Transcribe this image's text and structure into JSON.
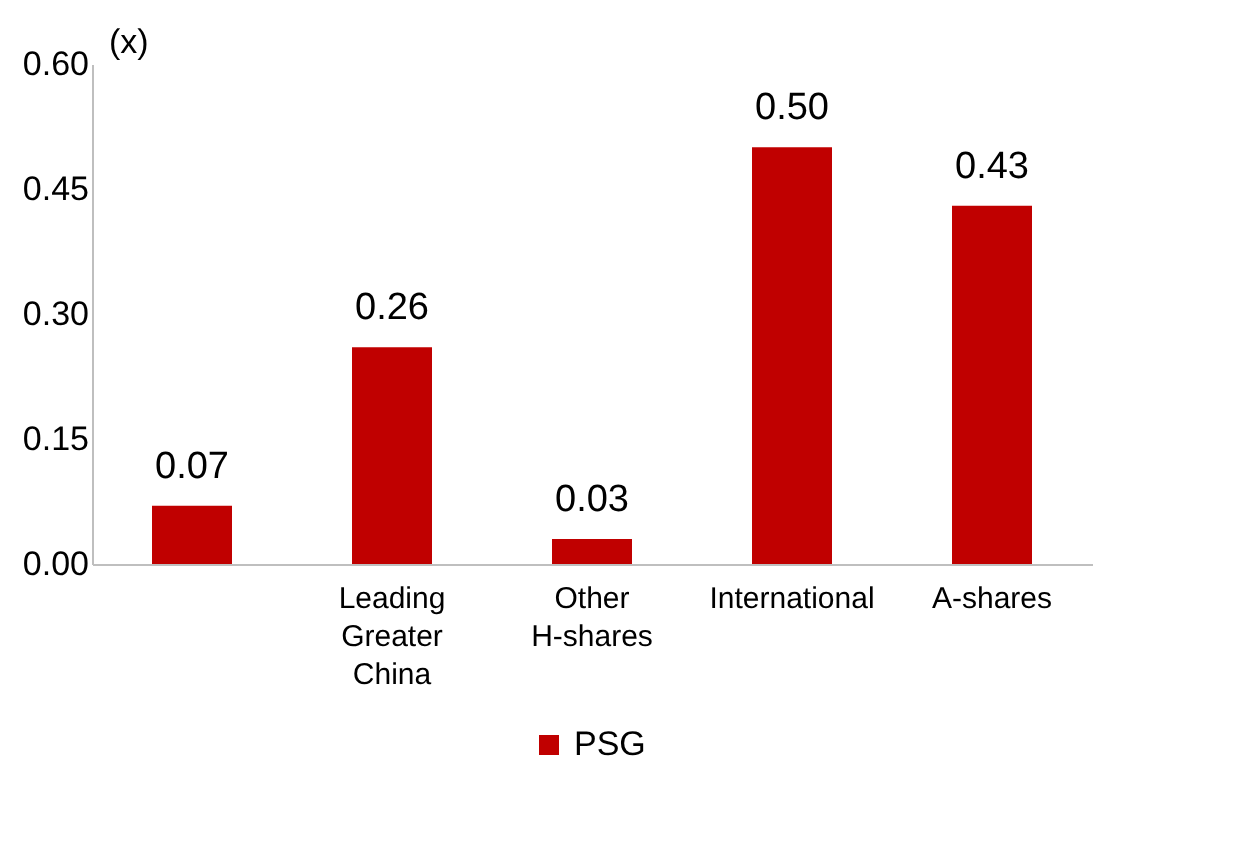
{
  "chart_data": {
    "type": "bar",
    "ylabel": "(x)",
    "categories": [
      null,
      "Leading Greater China",
      "Other H-shares",
      "International",
      "A-shares"
    ],
    "series": [
      {
        "name": "PSG",
        "color": "#c00000",
        "values": [
          0.07,
          0.26,
          0.03,
          0.5,
          0.43
        ],
        "value_labels": [
          "0.07",
          "0.26",
          "0.03",
          "0.50",
          "0.43"
        ]
      }
    ],
    "ylim": [
      0,
      0.6
    ],
    "yticks": [
      {
        "value": 0,
        "label": "0.00"
      },
      {
        "value": 0.15,
        "label": "0.15"
      },
      {
        "value": 0.3,
        "label": "0.30"
      },
      {
        "value": 0.45,
        "label": "0.45"
      },
      {
        "value": 0.6,
        "label": "0.60"
      }
    ],
    "grid": false,
    "legend": "bottom"
  }
}
